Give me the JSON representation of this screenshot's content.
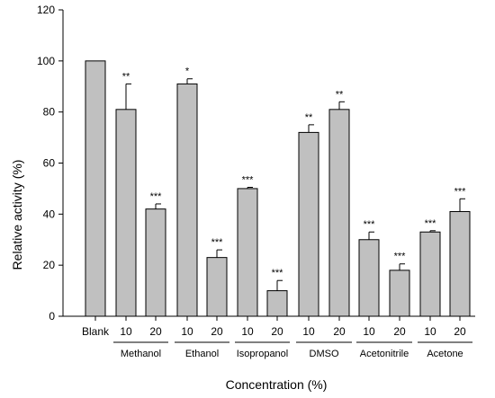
{
  "chart_data": {
    "type": "bar",
    "ylabel": "Relative activity (%)",
    "xlabel": "Concentration (%)",
    "ylim": [
      0,
      120
    ],
    "yticks": [
      0,
      20,
      40,
      60,
      80,
      100,
      120
    ],
    "bar_color": "#c0c0c0",
    "error_bars": "upper",
    "bars": [
      {
        "label": "Blank",
        "value": 100,
        "error": 0,
        "sig": ""
      },
      {
        "label": "10",
        "value": 81,
        "error": 10,
        "sig": "**"
      },
      {
        "label": "20",
        "value": 42,
        "error": 2,
        "sig": "***"
      },
      {
        "label": "10",
        "value": 91,
        "error": 2,
        "sig": "*"
      },
      {
        "label": "20",
        "value": 23,
        "error": 3,
        "sig": "***"
      },
      {
        "label": "10",
        "value": 50,
        "error": 0.5,
        "sig": "***"
      },
      {
        "label": "20",
        "value": 10,
        "error": 4,
        "sig": "***"
      },
      {
        "label": "10",
        "value": 72,
        "error": 3,
        "sig": "**"
      },
      {
        "label": "20",
        "value": 81,
        "error": 3,
        "sig": "**"
      },
      {
        "label": "10",
        "value": 30,
        "error": 3,
        "sig": "***"
      },
      {
        "label": "20",
        "value": 18,
        "error": 2.5,
        "sig": "***"
      },
      {
        "label": "10",
        "value": 33,
        "error": 0.5,
        "sig": "***"
      },
      {
        "label": "20",
        "value": 41,
        "error": 5,
        "sig": "***"
      }
    ],
    "groups": [
      {
        "name": "Methanol",
        "bars": [
          1,
          2
        ]
      },
      {
        "name": "Ethanol",
        "bars": [
          3,
          4
        ]
      },
      {
        "name": "Isopropanol",
        "bars": [
          5,
          6
        ]
      },
      {
        "name": "DMSO",
        "bars": [
          7,
          8
        ]
      },
      {
        "name": "Acetonitrile",
        "bars": [
          9,
          10
        ]
      },
      {
        "name": "Acetone",
        "bars": [
          11,
          12
        ]
      }
    ]
  }
}
